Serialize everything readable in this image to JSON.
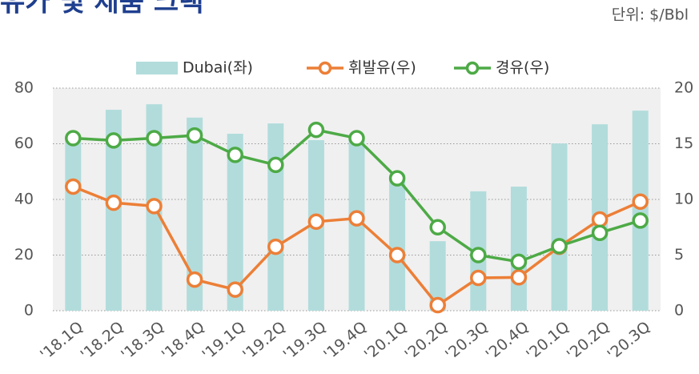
{
  "chart_data": {
    "type": "bar_line",
    "title": "유가 및 제품 크랙",
    "unit": "단위: $/Bbl",
    "categories": [
      "'18.1Q",
      "'18.2Q",
      "'18.3Q",
      "'18.4Q",
      "'19.1Q",
      "'19.2Q",
      "'19.3Q",
      "'19.4Q",
      "'20.1Q",
      "'20.2Q",
      "'20.3Q",
      "'20.4Q",
      "'20.1Q",
      "'20.2Q",
      "'20.3Q"
    ],
    "series": [
      {
        "name": "Dubai(좌)",
        "color": "#b2dcdc",
        "kind": "bar",
        "values": [
          62,
          72.2,
          74.2,
          69.4,
          63.6,
          67.3,
          61.3,
          62,
          49,
          25,
          42.9,
          44.6,
          60.1,
          67,
          71.9
        ]
      },
      {
        "name": "휘발유(우)",
        "color": "#ec7f37",
        "kind": "line",
        "axis": "y2",
        "values": [
          11.15,
          9.7,
          9.4,
          2.8,
          1.9,
          5.75,
          8.0,
          8.3,
          5.0,
          0.5,
          2.95,
          3.0,
          5.75,
          8.2,
          9.8
        ]
      },
      {
        "name": "경유(우)",
        "color": "#4daa46",
        "kind": "line",
        "axis": "y2",
        "values": [
          15.5,
          15.3,
          15.5,
          15.75,
          14.0,
          13.1,
          16.25,
          15.5,
          11.9,
          7.5,
          5.0,
          4.4,
          5.8,
          7.0,
          8.1
        ]
      }
    ],
    "ylim": [
      0,
      80
    ],
    "yticks": [
      0,
      20,
      40,
      60,
      80
    ],
    "y2lim": [
      0,
      20
    ],
    "y2ticks": [
      0,
      5,
      10,
      15,
      20
    ],
    "grid": true
  }
}
